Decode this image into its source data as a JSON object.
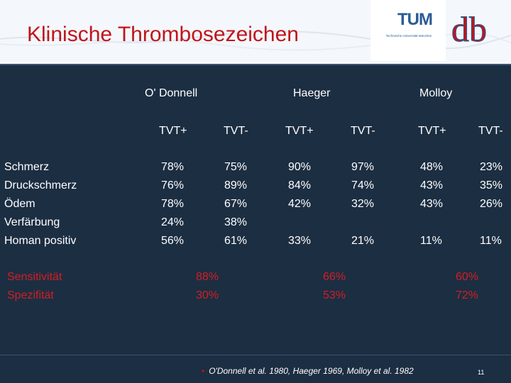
{
  "header": {
    "title": "Klinische Thrombosezeichen",
    "logo_tum_text": "TUM",
    "logo_tum_subtitle": "Technische Universität München",
    "logo_db_text": "db"
  },
  "table": {
    "groups": [
      "O' Donnell",
      "Haeger",
      "Molloy"
    ],
    "subheaders": [
      "TVT+",
      "TVT-",
      "TVT+",
      "TVT-",
      "TVT+",
      "TVT-"
    ],
    "rows": [
      {
        "label": "Schmerz",
        "values": [
          "78%",
          "75%",
          "90%",
          "97%",
          "48%",
          "23%"
        ]
      },
      {
        "label": "Druckschmerz",
        "values": [
          "76%",
          "89%",
          "84%",
          "74%",
          "43%",
          "35%"
        ]
      },
      {
        "label": "Ödem",
        "values": [
          "78%",
          "67%",
          "42%",
          "32%",
          "43%",
          "26%"
        ]
      },
      {
        "label": "Verfärbung",
        "values": [
          "24%",
          "38%",
          "",
          "",
          "",
          ""
        ]
      },
      {
        "label": "Homan positiv",
        "values": [
          "56%",
          "61%",
          "33%",
          "21%",
          "11%",
          "11%"
        ]
      }
    ],
    "summary": [
      {
        "label": "Sensitivität",
        "values": [
          "88%",
          "66%",
          "60%"
        ]
      },
      {
        "label": "Spezifität",
        "values": [
          "30%",
          "53%",
          "72%"
        ]
      }
    ]
  },
  "footer": {
    "reference": "O'Donnell et al. 1980, Haeger 1969, Molloy et al. 1982",
    "page_number": "11"
  },
  "colors": {
    "background": "#1c2e42",
    "title_red": "#c0151b",
    "summary_red": "#d21e24",
    "tum_blue": "#2a5c96"
  }
}
